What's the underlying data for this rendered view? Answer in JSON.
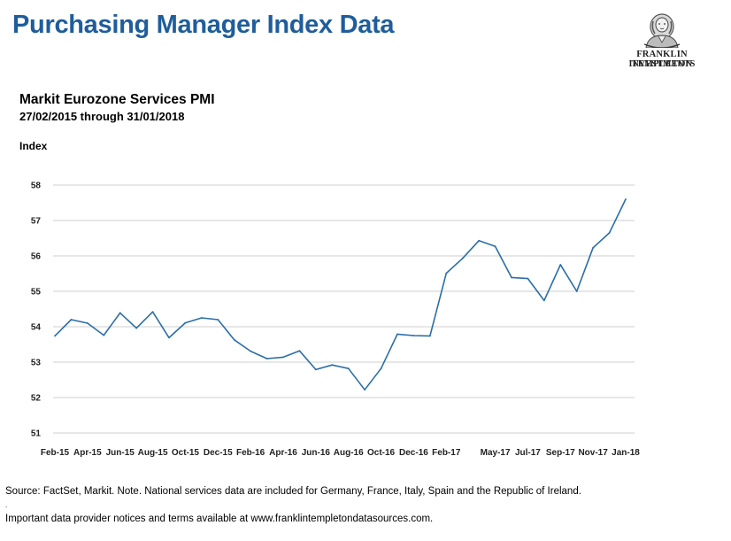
{
  "page": {
    "title": "Purchasing Manager Index Data"
  },
  "logo": {
    "line1": "FRANKLIN TEMPLETON",
    "line2": "INVESTMENTS"
  },
  "chart_data": {
    "type": "line",
    "title": "Markit Eurozone Services PMI",
    "subtitle": "27/02/2015 through 31/01/2018",
    "ylabel": "Index",
    "xlabel": "",
    "ylim": [
      51,
      58
    ],
    "yticks": [
      51,
      52,
      53,
      54,
      55,
      56,
      57,
      58
    ],
    "grid": true,
    "legend": "none",
    "line_color": "#2a6ea8",
    "x_tick_labels": [
      "Feb-15",
      "Apr-15",
      "Jun-15",
      "Aug-15",
      "Oct-15",
      "Dec-15",
      "Feb-16",
      "Apr-16",
      "Jun-16",
      "Aug-16",
      "Oct-16",
      "Dec-16",
      "Feb-17",
      "May-17",
      "Jul-17",
      "Sep-17",
      "Nov-17",
      "Jan-18"
    ],
    "x_tick_indices": [
      0,
      2,
      4,
      6,
      8,
      10,
      12,
      14,
      16,
      18,
      20,
      22,
      24,
      27,
      29,
      31,
      33,
      35
    ],
    "x": [
      "Feb-15",
      "Mar-15",
      "Apr-15",
      "May-15",
      "Jun-15",
      "Jul-15",
      "Aug-15",
      "Sep-15",
      "Oct-15",
      "Nov-15",
      "Dec-15",
      "Jan-16",
      "Feb-16",
      "Mar-16",
      "Apr-16",
      "May-16",
      "Jun-16",
      "Jul-16",
      "Aug-16",
      "Sep-16",
      "Oct-16",
      "Nov-16",
      "Dec-16",
      "Jan-17",
      "Feb-17",
      "Mar-17",
      "Apr-17",
      "May-17",
      "Jun-17",
      "Jul-17",
      "Aug-17",
      "Sep-17",
      "Oct-17",
      "Nov-17",
      "Dec-17",
      "Jan-18"
    ],
    "series": [
      {
        "values": [
          53.74,
          54.2,
          54.1,
          53.76,
          54.39,
          53.96,
          54.42,
          53.69,
          54.11,
          54.25,
          54.2,
          53.63,
          53.31,
          53.1,
          53.14,
          53.32,
          52.79,
          52.92,
          52.82,
          52.22,
          52.82,
          53.79,
          53.75,
          53.74,
          55.51,
          55.93,
          56.43,
          56.27,
          55.39,
          55.36,
          54.74,
          55.75,
          55.0,
          56.23,
          56.65,
          57.6
        ]
      }
    ]
  },
  "footer": {
    "source": "Source: FactSet, Markit. Note. National services data are included for Germany, France, Italy, Spain and the Republic of Ireland.",
    "dot": ".",
    "notice": "Important data provider notices and terms available at www.franklintempletondatasources.com."
  }
}
